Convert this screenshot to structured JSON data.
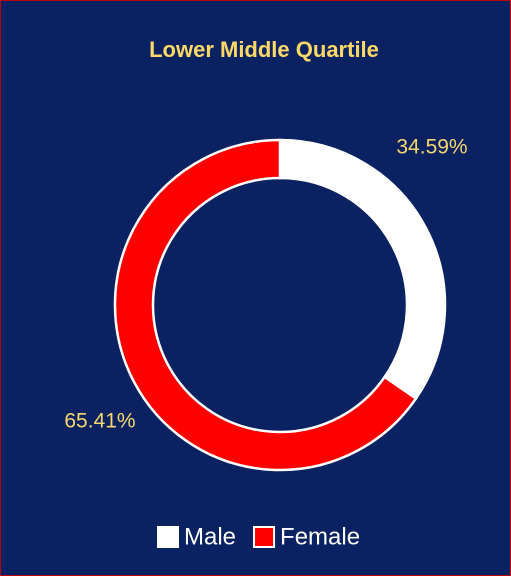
{
  "chart_data": {
    "type": "donut",
    "title": "Lower Middle Quartile",
    "categories": [
      "Male",
      "Female"
    ],
    "values": [
      34.59,
      65.41
    ],
    "value_labels": [
      "34.59%",
      "65.41%"
    ],
    "colors": [
      "#ffffff",
      "#ff0000"
    ],
    "legend": "bottom"
  }
}
